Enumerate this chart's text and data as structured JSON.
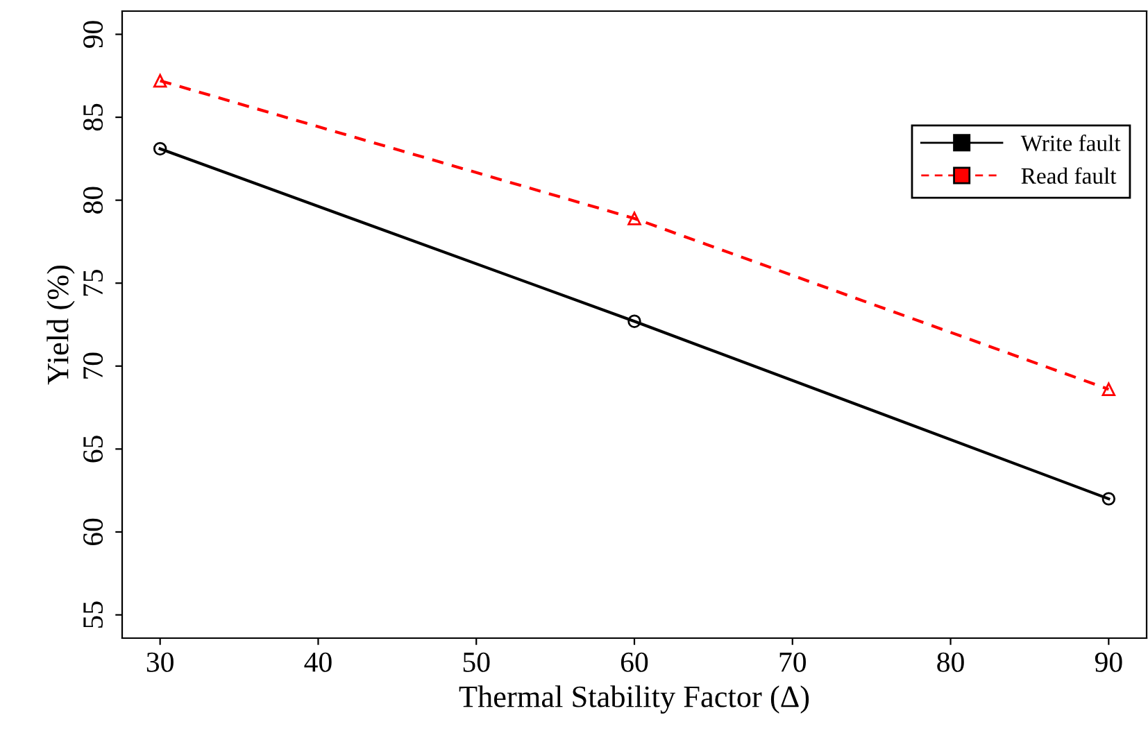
{
  "chart_data": {
    "type": "line",
    "xlabel": "Thermal Stability Factor (Δ)",
    "ylabel": "Yield (%)",
    "x": [
      30,
      60,
      90
    ],
    "series": [
      {
        "name": "Write fault",
        "color": "#000000",
        "values": [
          83.1,
          72.7,
          62.0
        ],
        "marker": "circle",
        "line_style": "solid"
      },
      {
        "name": "Read fault",
        "color": "#ff0000",
        "values": [
          87.2,
          78.9,
          68.6
        ],
        "marker": "triangle",
        "line_style": "dashed"
      }
    ],
    "xlim": [
      27.6,
      92.4
    ],
    "xticks": [
      30,
      40,
      50,
      60,
      70,
      80,
      90
    ],
    "ylim": [
      53.6,
      91.4
    ],
    "yticks": [
      55,
      60,
      65,
      70,
      75,
      80,
      85,
      90
    ],
    "grid": false,
    "legend": "right"
  }
}
